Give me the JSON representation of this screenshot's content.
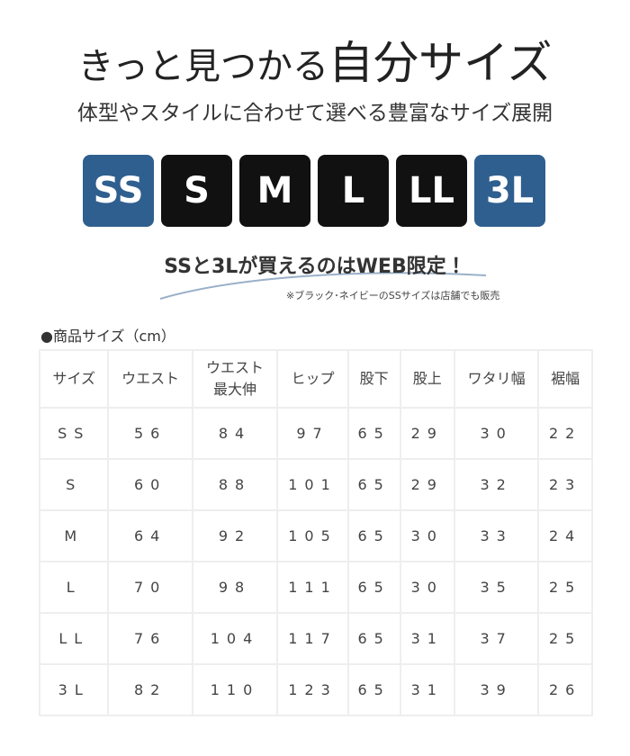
{
  "header": {
    "title_lead": "きっと見つかる",
    "title_emphasis": "自分サイズ",
    "subtitle": "体型やスタイルに合わせて選べる豊富なサイズ展開"
  },
  "sizes": [
    {
      "label": "SS",
      "color": "#2f5f8f"
    },
    {
      "label": "S",
      "color": "#111111"
    },
    {
      "label": "M",
      "color": "#111111"
    },
    {
      "label": "L",
      "color": "#111111"
    },
    {
      "label": "LL",
      "color": "#111111"
    },
    {
      "label": "3L",
      "color": "#2f5f8f"
    }
  ],
  "notice": "SSと3Lが買えるのはWEB限定！",
  "note": "※ブラック･ネイビーのSSサイズは店舗でも販売",
  "table": {
    "caption": "●商品サイズ（cm）",
    "header": [
      "サイズ",
      "ウエスト",
      "ウエスト\n最大伸",
      "ヒップ",
      "股下",
      "股上",
      "ワタリ幅",
      "裾幅"
    ],
    "rows": [
      [
        "SS",
        "56",
        "84",
        "97",
        "65",
        "29",
        "30",
        "22"
      ],
      [
        "S",
        "60",
        "88",
        "101",
        "65",
        "29",
        "32",
        "23"
      ],
      [
        "M",
        "64",
        "92",
        "105",
        "65",
        "30",
        "33",
        "24"
      ],
      [
        "L",
        "70",
        "98",
        "111",
        "65",
        "30",
        "35",
        "25"
      ],
      [
        "LL",
        "76",
        "104",
        "117",
        "65",
        "31",
        "37",
        "25"
      ],
      [
        "3L",
        "82",
        "110",
        "123",
        "65",
        "31",
        "39",
        "26"
      ]
    ]
  }
}
